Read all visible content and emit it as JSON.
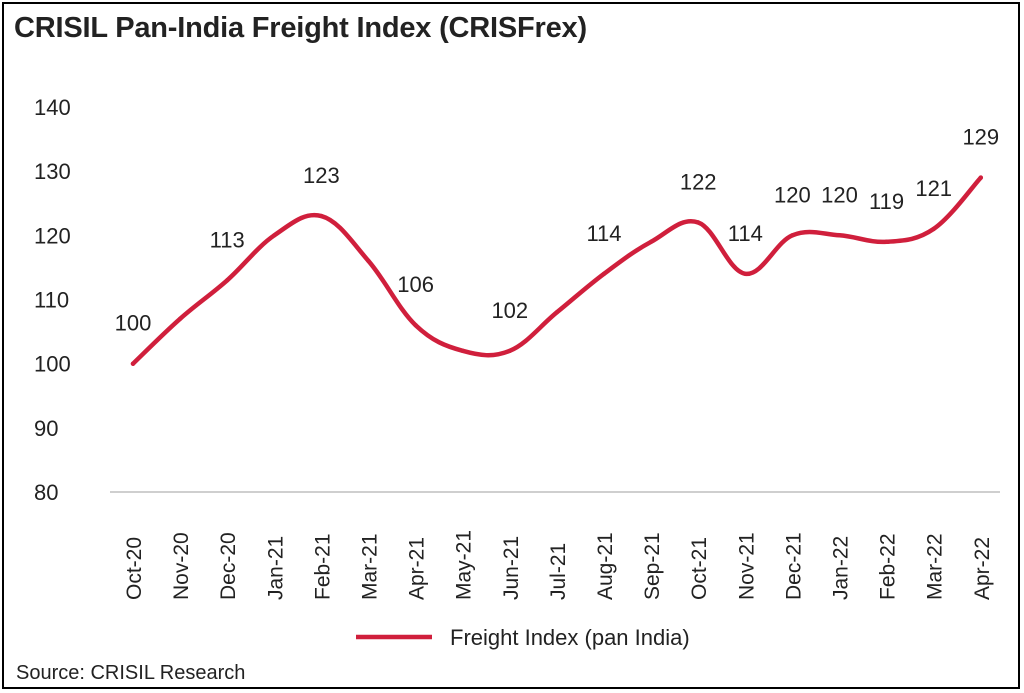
{
  "title": "CRISIL Pan-India Freight Index (CRISFrex)",
  "source": "Source: CRISIL Research",
  "colors": {
    "series": "#d01f3c",
    "axis": "#bfbfbf",
    "text": "#222222"
  },
  "chart_data": {
    "type": "line",
    "title": "CRISIL Pan-India Freight Index (CRISFrex)",
    "categories": [
      "Oct-20",
      "Nov-20",
      "Dec-20",
      "Jan-21",
      "Feb-21",
      "Mar-21",
      "Apr-21",
      "May-21",
      "Jun-21",
      "Jul-21",
      "Aug-21",
      "Sep-21",
      "Oct-21",
      "Nov-21",
      "Dec-21",
      "Jan-22",
      "Feb-22",
      "Mar-22",
      "Apr-22"
    ],
    "series": [
      {
        "name": "Freight Index (pan India)",
        "color": "#d01f3c",
        "values": [
          100,
          107,
          113,
          120,
          123,
          116,
          106,
          102,
          102,
          108,
          114,
          119,
          122,
          114,
          120,
          120,
          119,
          121,
          129
        ],
        "labels": [
          "100",
          "",
          "113",
          "",
          "123",
          "",
          "106",
          "",
          "102",
          "",
          "114",
          "",
          "122",
          "114",
          "120",
          "120",
          "119",
          "121",
          "129"
        ]
      }
    ],
    "yticks": [
      "140",
      "130",
      "120",
      "110",
      "100",
      "90",
      "80"
    ],
    "ylim": [
      80,
      140
    ],
    "grid": false,
    "legend_position": "bottom",
    "smooth": true
  }
}
